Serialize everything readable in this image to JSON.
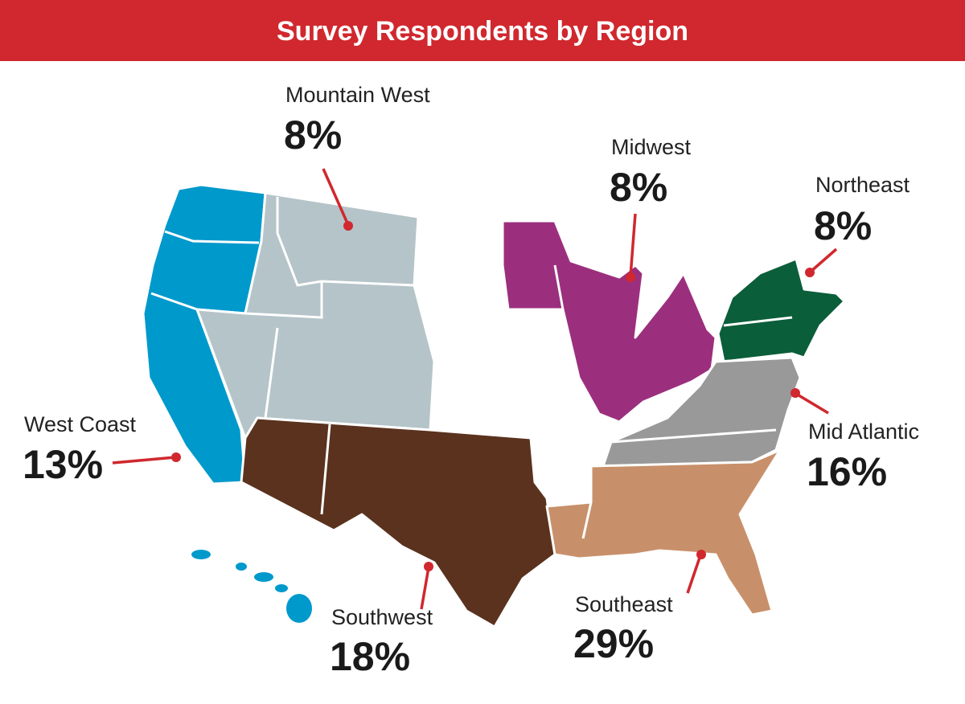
{
  "title": "Survey Respondents by Region",
  "regions": [
    {
      "name": "Mountain West",
      "share": "8%"
    },
    {
      "name": "Midwest",
      "share": "8%"
    },
    {
      "name": "Northeast",
      "share": "8%"
    },
    {
      "name": "West Coast",
      "share": "13%"
    },
    {
      "name": "Mid Atlantic",
      "share": "16%"
    },
    {
      "name": "Southwest",
      "share": "18%"
    },
    {
      "name": "Southeast",
      "share": "29%"
    }
  ]
}
